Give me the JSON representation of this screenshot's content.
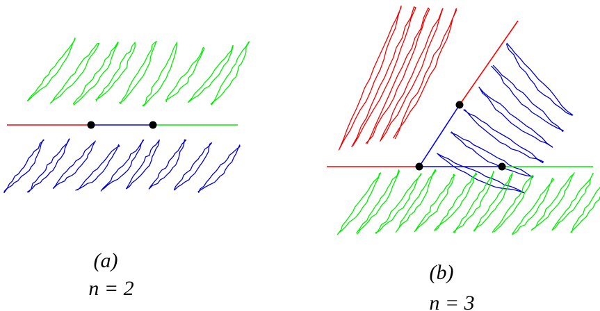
{
  "panels": [
    {
      "label": "(a)",
      "caption": "n = 2"
    },
    {
      "label": "(b)",
      "caption": "n = 3"
    }
  ]
}
